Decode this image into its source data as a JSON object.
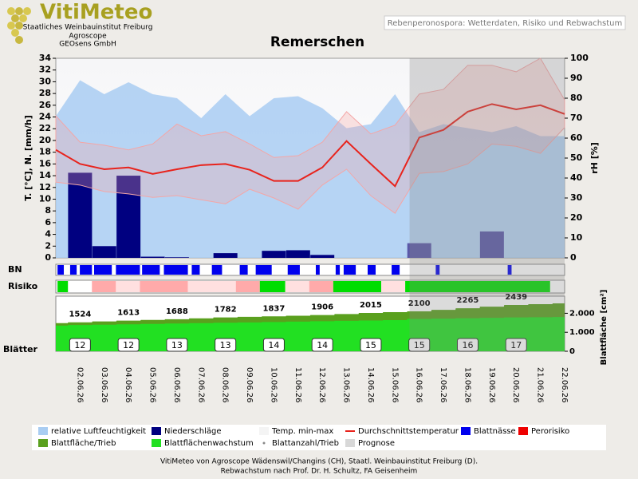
{
  "header": {
    "logo": "VitiMeteo",
    "org1": "Staatliches Weinbauinstitut Freiburg",
    "org2": "Agroscope",
    "org3": "GEOsens GmbH",
    "subtitle": "Rebenperonospora: Wetterdaten, Risiko und Rebwachstum"
  },
  "chart_data": {
    "type": "weather",
    "title": "Remerschen",
    "ylabel": "T. [°C], N. [mm/h]",
    "y2label": "rH [%]",
    "y3label": "Blattfläche [cm²]",
    "row_labels": [
      "BN",
      "Risiko",
      "Blätter"
    ],
    "categories": [
      null,
      "02.06.26",
      "03.06.26",
      "04.06.26",
      "05.06.26",
      "06.06.26",
      "07.06.26",
      "08.06.26",
      "09.06.26",
      "10.06.26",
      "11.06.26",
      "12.06.26",
      "13.06.26",
      "14.06.26",
      "15.06.26",
      "16.06.26",
      "17.06.26",
      "18.06.26",
      "19.06.26",
      "20.06.26",
      "21.06.26",
      "22.06.26"
    ],
    "ylim": [
      0,
      34
    ],
    "yticks": [
      0,
      2,
      4,
      6,
      8,
      10,
      12,
      14,
      16,
      18,
      20,
      22,
      24,
      26,
      28,
      30,
      32,
      34
    ],
    "y2lim": [
      0,
      100
    ],
    "y2ticks": [
      0,
      10,
      20,
      30,
      40,
      50,
      60,
      70,
      80,
      90,
      100
    ],
    "y3lim": [
      0,
      2900
    ],
    "y3ticks": [
      0,
      {
        "value": 1000,
        "label": "1.000"
      },
      {
        "value": 2000,
        "label": "2.000"
      }
    ],
    "series": [
      {
        "name": "relative Luftfeuchtigkeit",
        "color": "#a9cdf2",
        "axis": "y2",
        "values": [
          71,
          89,
          82,
          88,
          82,
          80,
          70,
          82,
          71,
          80,
          81,
          75,
          65,
          67,
          82,
          63,
          67,
          65,
          63,
          66,
          61,
          61
        ]
      },
      {
        "name": "Niederschläge",
        "color": "#000080",
        "forecast_color": "#5a58a8",
        "values": [
          null,
          14.5,
          2,
          14,
          0.2,
          0.1,
          0,
          0.8,
          0,
          1.2,
          1.3,
          0.5,
          0,
          0,
          0,
          2.5,
          0,
          0,
          4.5,
          0,
          0,
          0
        ]
      },
      {
        "name": "Temp. min-max",
        "color": "#f4f4f4",
        "band_color": "#f4a6a6",
        "min": [
          12.9,
          12.4,
          11.3,
          10.9,
          10.3,
          10.6,
          9.9,
          9.2,
          11.7,
          10.2,
          8.3,
          12.4,
          15.1,
          10.6,
          7.6,
          14.4,
          14.7,
          16,
          19.4,
          19,
          17.8,
          22.2
        ],
        "max": [
          24.2,
          19.7,
          19.2,
          18.4,
          19.4,
          22.8,
          20.8,
          21.5,
          19.4,
          17.1,
          17.4,
          19.7,
          24.9,
          21.1,
          22.6,
          27.9,
          28.7,
          32.8,
          32.8,
          31.7,
          34,
          26.9
        ]
      },
      {
        "name": "Durchschnittstemperatur",
        "color": "#e8231c",
        "values": [
          18.4,
          16,
          15.1,
          15.4,
          14.3,
          15.1,
          15.8,
          16,
          15,
          13.1,
          13.1,
          15.4,
          19.9,
          16,
          12.2,
          20.5,
          21.8,
          24.9,
          26.2,
          25.3,
          26,
          24.5
        ]
      },
      {
        "name": "Blattnässe",
        "color": "#0000ee",
        "intervals": [
          [
            0.07,
            0.33
          ],
          [
            0.59,
            0.86
          ],
          [
            0.99,
            1.49
          ],
          [
            1.58,
            2.31
          ],
          [
            2.48,
            3.47
          ],
          [
            3.56,
            4.29
          ],
          [
            4.46,
            5.45
          ],
          [
            5.61,
            5.94
          ],
          [
            6.44,
            6.86
          ],
          [
            7.59,
            7.92
          ],
          [
            8.25,
            8.91
          ],
          [
            9.57,
            10.07
          ],
          [
            10.73,
            10.89
          ],
          [
            11.55,
            11.72
          ],
          [
            11.88,
            12.38
          ],
          [
            12.87,
            13.2
          ],
          [
            13.86,
            14.19
          ],
          [
            15.68,
            15.84
          ],
          [
            18.65,
            18.81
          ]
        ]
      },
      {
        "name": "Perorisiko",
        "color": "#ee0000",
        "intervals": [
          {
            "from": 0.07,
            "to": 0.5,
            "color": "#00dd00"
          },
          {
            "from": 1.49,
            "to": 2.48,
            "color": "#ffaaaa"
          },
          {
            "from": 2.48,
            "to": 3.47,
            "color": "#ffe0e0"
          },
          {
            "from": 3.47,
            "to": 5.45,
            "color": "#ffaaaa"
          },
          {
            "from": 5.45,
            "to": 7.43,
            "color": "#ffe0e0"
          },
          {
            "from": 7.43,
            "to": 8.42,
            "color": "#ffaaaa"
          },
          {
            "from": 8.42,
            "to": 9.47,
            "color": "#00dd00"
          },
          {
            "from": 9.47,
            "to": 10.46,
            "color": "#ffe0e0"
          },
          {
            "from": 10.46,
            "to": 11.45,
            "color": "#ffaaaa"
          },
          {
            "from": 11.45,
            "to": 13.43,
            "color": "#00dd00"
          },
          {
            "from": 13.43,
            "to": 14.42,
            "color": "#ffe0e0"
          },
          {
            "from": 14.42,
            "to": 20.4,
            "color": "#00dd00"
          }
        ]
      },
      {
        "name": "Blattfläche/Trieb",
        "color": "#5aa01e",
        "axis": "y3",
        "values": [
          1480,
          1524,
          1570,
          1613,
          1650,
          1688,
          1735,
          1782,
          1810,
          1837,
          1870,
          1906,
          1960,
          2015,
          2060,
          2100,
          2180,
          2265,
          2350,
          2439,
          2480,
          2520
        ]
      },
      {
        "name": "Blattflächenwachstum",
        "color": "#22e022",
        "axis": "y3",
        "values": [
          1350,
          1380,
          1400,
          1420,
          1440,
          1460,
          1480,
          1500,
          1520,
          1540,
          1560,
          1580,
          1600,
          1620,
          1640,
          1700,
          1720,
          1740,
          1760,
          1780,
          1790,
          1800
        ]
      },
      {
        "name": "Blattanzahl/Trieb",
        "color": "#888888",
        "values": [
          null,
          12,
          null,
          12,
          null,
          13,
          null,
          13,
          null,
          14,
          null,
          14,
          null,
          15,
          null,
          15,
          null,
          16,
          null,
          17,
          null,
          null
        ]
      },
      {
        "name": "Prognose",
        "color": "#d8d8d8",
        "start": 14.6
      }
    ]
  },
  "footer": {
    "line1": "VitiMeteo von Agroscope Wädenswil/Changins (CH), Staatl. Weinbauinstitut Freiburg (D).",
    "line2": "Rebwachstum nach Prof. Dr. H. Schultz, FA Geisenheim"
  }
}
